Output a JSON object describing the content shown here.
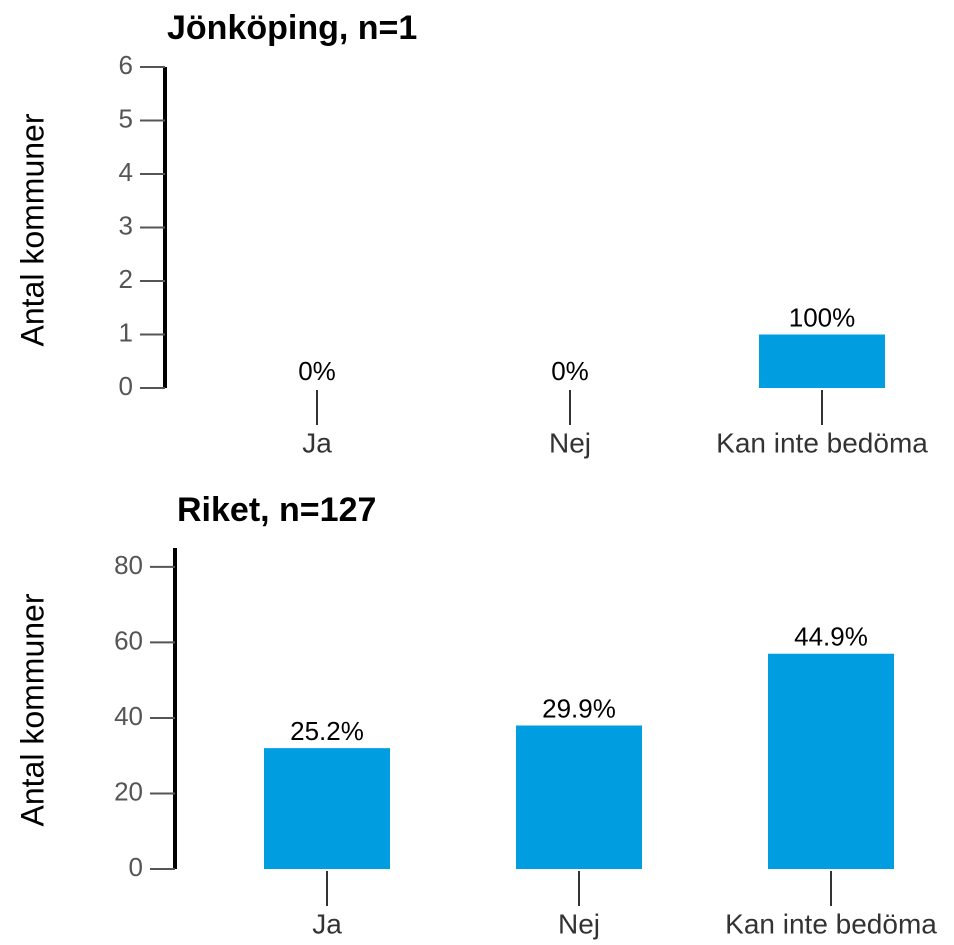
{
  "chart_data": [
    {
      "type": "bar",
      "title": "Jönköping, n=1",
      "y_label": "Antal kommuner",
      "categories": [
        "Ja",
        "Nej",
        "Kan inte bedöma"
      ],
      "values": [
        0,
        0,
        1
      ],
      "value_labels": [
        "0%",
        "0%",
        "100%"
      ],
      "color": "#009ee0",
      "ylim": [
        0,
        6
      ],
      "yticks": [
        0,
        1,
        2,
        3,
        4,
        5,
        6
      ]
    },
    {
      "type": "bar",
      "title": "Riket, n=127",
      "y_label": "Antal kommuner",
      "categories": [
        "Ja",
        "Nej",
        "Kan inte bedöma"
      ],
      "values": [
        32,
        38,
        57
      ],
      "value_labels": [
        "25.2%",
        "29.9%",
        "44.9%"
      ],
      "color": "#009ee0",
      "ylim": [
        0,
        85
      ],
      "yticks": [
        0,
        20,
        40,
        60,
        80
      ]
    }
  ]
}
